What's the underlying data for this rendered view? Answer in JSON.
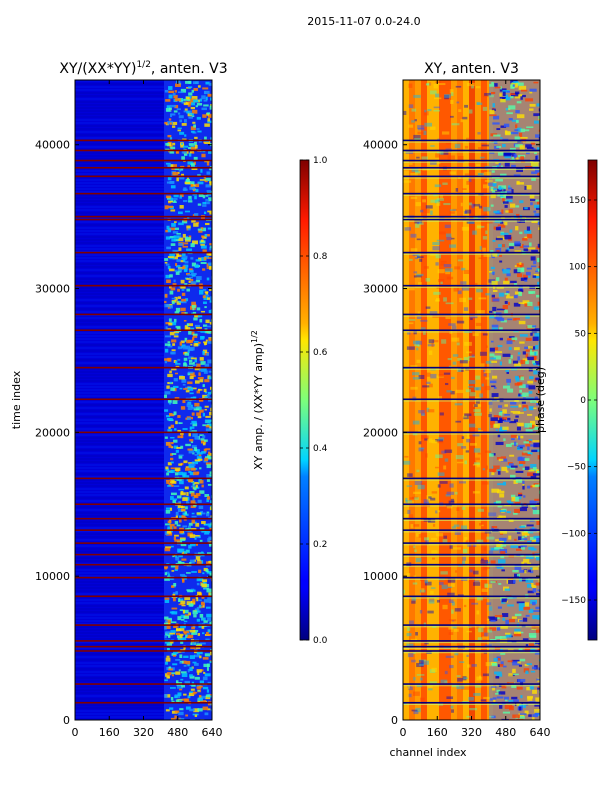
{
  "figure_title": "2015-11-07 0.0-24.0",
  "chart_data": [
    {
      "type": "heatmap",
      "title": "XY/(XX*YY)^{1/2}, anten. V3",
      "title_main": "XY/(XX*YY)",
      "title_exp": "1/2",
      "title_tail": ", anten. V3",
      "xlabel": "",
      "ylabel": "time index",
      "xlim": [
        0,
        640
      ],
      "ylim": [
        0,
        44500
      ],
      "xticks": [
        0,
        160,
        320,
        480,
        640
      ],
      "yticks": [
        0,
        10000,
        20000,
        30000,
        40000
      ],
      "colorbar": {
        "label": "XY amp. / (XX*YY amp)^{1/2}",
        "label_main": "XY amp. / (XX*YY amp)",
        "label_exp": "1/2",
        "range": [
          0.0,
          1.0
        ],
        "ticks": [
          "0.0",
          "0.2",
          "0.4",
          "0.6",
          "0.8",
          "1.0"
        ],
        "colormap": "jet"
      },
      "bad_time_rows": [
        1200,
        2500,
        4800,
        5100,
        5500,
        6600,
        8600,
        9900,
        10800,
        11500,
        12300,
        13200,
        14000,
        15000,
        16800,
        20000,
        22300,
        24500,
        27100,
        28200,
        30200,
        32500,
        34800,
        35000,
        36600,
        37800,
        38400,
        38900,
        39600,
        40300
      ],
      "annotation": "regions above channel ~410 show elevated, variable amplitude (0.3-0.8); channels below ~400 are low (~0.05-0.15)"
    },
    {
      "type": "heatmap",
      "title": "XY, anten. V3",
      "xlabel": "channel index",
      "ylabel": "",
      "xlim": [
        0,
        640
      ],
      "ylim": [
        0,
        44500
      ],
      "xticks": [
        0,
        160,
        320,
        480,
        640
      ],
      "yticks": [
        0,
        10000,
        20000,
        30000,
        40000
      ],
      "colorbar": {
        "label": "phase (deg)",
        "range": [
          -180,
          180
        ],
        "ticks": [
          "−150",
          "−100",
          "−50",
          "0",
          "50",
          "100",
          "150"
        ],
        "colormap": "jet"
      },
      "annotation": "phase mostly +100 to +180 deg in channels below ~400; mixed/wrapped phase above ~400"
    }
  ],
  "colors": {
    "jet_low": "#00007f",
    "jet_high": "#7f0000",
    "flag_row": "#800000"
  }
}
